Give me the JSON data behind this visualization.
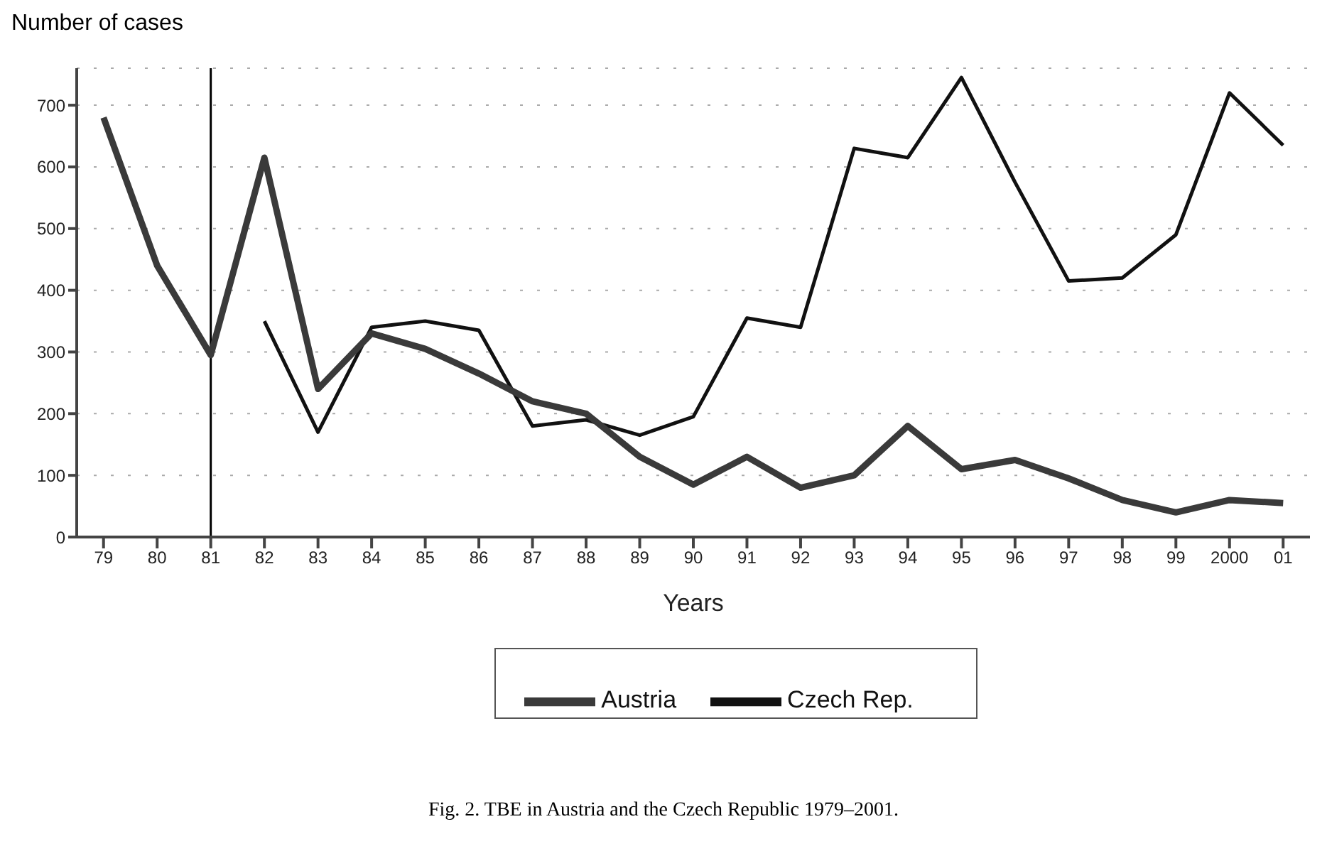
{
  "chart_data": {
    "type": "line",
    "ylabel": "Number of cases",
    "xlabel": "Years",
    "categories": [
      "79",
      "80",
      "81",
      "82",
      "83",
      "84",
      "85",
      "86",
      "87",
      "88",
      "89",
      "90",
      "91",
      "92",
      "93",
      "94",
      "95",
      "96",
      "97",
      "98",
      "99",
      "2000",
      "01"
    ],
    "series": [
      {
        "name": "Czech Rep.",
        "color": "#111111",
        "values": [
          null,
          null,
          null,
          350,
          170,
          340,
          350,
          335,
          180,
          190,
          165,
          195,
          355,
          340,
          630,
          615,
          745,
          575,
          415,
          420,
          490,
          720,
          635
        ]
      },
      {
        "name": "Austria",
        "color": "#3a3a3a",
        "values": [
          680,
          440,
          295,
          615,
          240,
          330,
          305,
          265,
          220,
          200,
          130,
          85,
          130,
          80,
          100,
          180,
          110,
          125,
          95,
          60,
          40,
          60,
          55
        ]
      }
    ],
    "ylim": [
      0,
      760
    ],
    "yticks": [
      0,
      100,
      200,
      300,
      400,
      500,
      600,
      700
    ],
    "grid": "y",
    "legend": "bottom",
    "marker": "none",
    "line_style": "solid",
    "ref_lines": [
      {
        "axis": "x",
        "value": "81",
        "color": "#000000"
      }
    ],
    "annotations": [
      "Fig. 2. TBE in Austria and the Czech Republic 1979–2001."
    ]
  }
}
